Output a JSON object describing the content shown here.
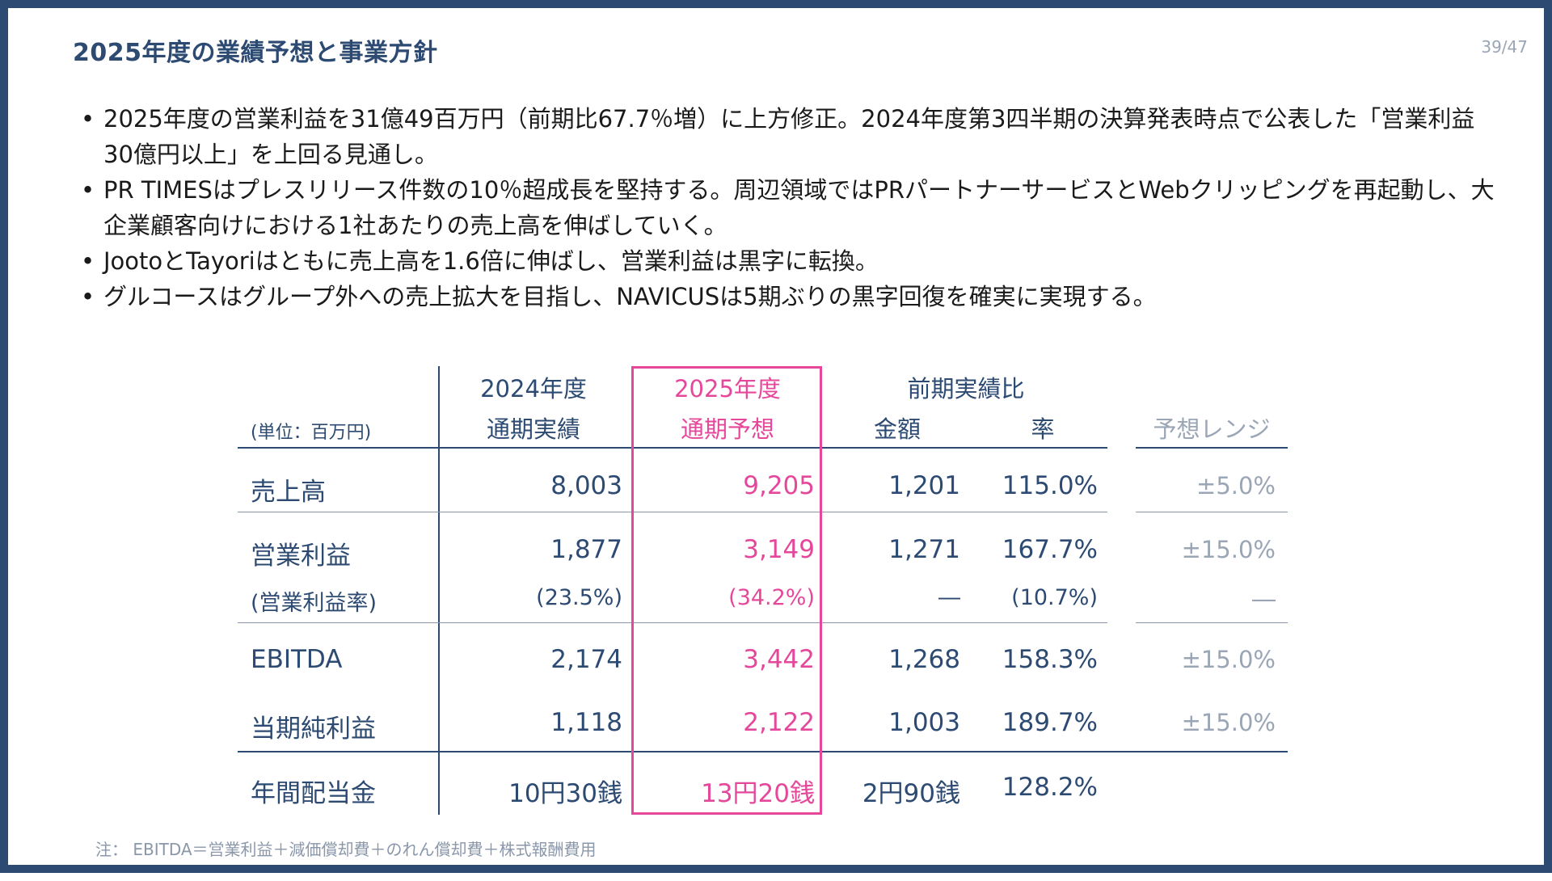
{
  "slide": {
    "title": "2025年度の業績予想と事業方針",
    "page": "39/47"
  },
  "bullets": [
    "2025年度の営業利益を31億49百万円（前期比67.7％増）に上方修正。2024年度第3四半期の決算発表時点で公表した「営業利益30億円以上」を上回る見通し。",
    "PR TIMESはプレスリリース件数の10％超成長を堅持する。周辺領域ではPRパートナーサービスとWebクリッピングを再起動し、大企業顧客向けにおける1社あたりの売上高を伸ばしていく。",
    "JootoとTayoriはともに売上高を1.6倍に伸ばし、営業利益は黒字に転換。",
    "グルコースはグループ外への売上拡大を目指し、NAVICUSは5期ぶりの黒字回復を確実に実現する。"
  ],
  "table": {
    "unit": "(単位：百万円)",
    "headers": {
      "fy2024_line1": "2024年度",
      "fy2024_line2": "通期実績",
      "fy2025_line1": "2025年度",
      "fy2025_line2": "通期予想",
      "yoy_group": "前期実績比",
      "yoy_amount": "金額",
      "yoy_rate": "率",
      "range": "予想レンジ"
    },
    "rows": {
      "sales": {
        "label": "売上高",
        "fy2024": "8,003",
        "fy2025": "9,205",
        "amount": "1,201",
        "rate": "115.0%",
        "range": "±5.0%"
      },
      "op": {
        "label": "営業利益",
        "fy2024": "1,877",
        "fy2025": "3,149",
        "amount": "1,271",
        "rate": "167.7%",
        "range": "±15.0%"
      },
      "opm": {
        "label": "(営業利益率)",
        "fy2024": "(23.5%)",
        "fy2025": "(34.2%)",
        "amount": "―",
        "rate": "(10.7%)",
        "range": "―"
      },
      "ebitda": {
        "label": "EBITDA",
        "fy2024": "2,174",
        "fy2025": "3,442",
        "amount": "1,268",
        "rate": "158.3%",
        "range": "±15.0%"
      },
      "net": {
        "label": "当期純利益",
        "fy2024": "1,118",
        "fy2025": "2,122",
        "amount": "1,003",
        "rate": "189.7%",
        "range": "±15.0%"
      },
      "div": {
        "label": "年間配当金",
        "fy2024": "10円30銭",
        "fy2025": "13円20銭",
        "amount": "2円90銭",
        "rate": "128.2%"
      }
    }
  },
  "note": "注： EBITDA＝営業利益＋減価償却費＋のれん償却費＋株式報酬費用",
  "colors": {
    "frame": "#2c4a72",
    "accent": "#e5489b",
    "muted": "#9aa5b5"
  }
}
